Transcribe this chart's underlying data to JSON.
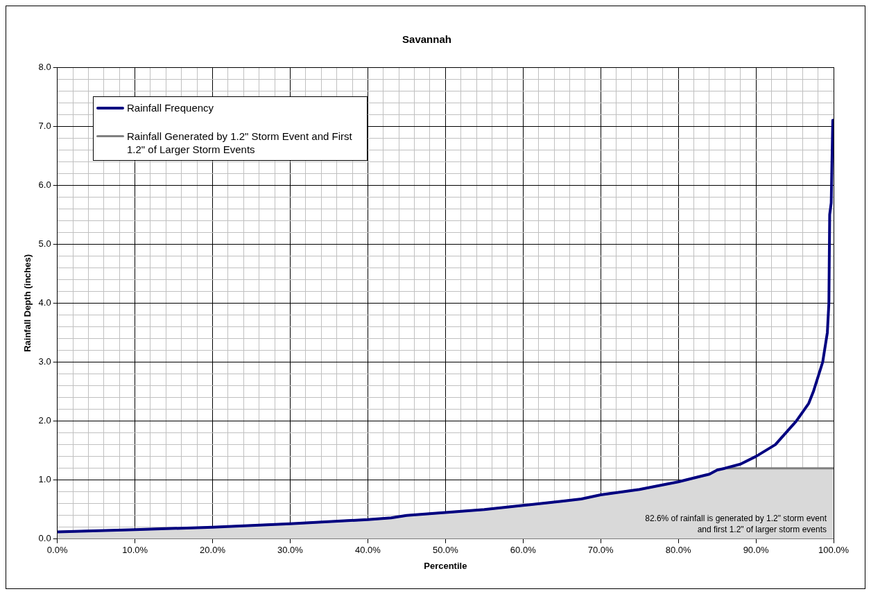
{
  "chart_data": {
    "type": "line",
    "title": "Savannah",
    "xlabel": "Percentile",
    "ylabel": "Rainfall Depth (inches)",
    "xlim": [
      0,
      100
    ],
    "ylim": [
      0,
      8
    ],
    "xticks": [
      {
        "value": 0,
        "label": "0.0%"
      },
      {
        "value": 2,
        "label": null
      },
      {
        "value": 4,
        "label": null
      },
      {
        "value": 6,
        "label": null
      },
      {
        "value": 8,
        "label": null
      },
      {
        "value": 10,
        "label": "10.0%"
      },
      {
        "value": 12,
        "label": null
      },
      {
        "value": 14,
        "label": null
      },
      {
        "value": 16,
        "label": null
      },
      {
        "value": 18,
        "label": null
      },
      {
        "value": 20,
        "label": "20.0%"
      },
      {
        "value": 22,
        "label": null
      },
      {
        "value": 24,
        "label": null
      },
      {
        "value": 26,
        "label": null
      },
      {
        "value": 28,
        "label": null
      },
      {
        "value": 30,
        "label": "30.0%"
      },
      {
        "value": 32,
        "label": null
      },
      {
        "value": 34,
        "label": null
      },
      {
        "value": 36,
        "label": null
      },
      {
        "value": 38,
        "label": null
      },
      {
        "value": 40,
        "label": "40.0%"
      },
      {
        "value": 42,
        "label": null
      },
      {
        "value": 44,
        "label": null
      },
      {
        "value": 46,
        "label": null
      },
      {
        "value": 48,
        "label": null
      },
      {
        "value": 50,
        "label": "50.0%"
      },
      {
        "value": 52,
        "label": null
      },
      {
        "value": 54,
        "label": null
      },
      {
        "value": 56,
        "label": null
      },
      {
        "value": 58,
        "label": null
      },
      {
        "value": 60,
        "label": "60.0%"
      },
      {
        "value": 62,
        "label": null
      },
      {
        "value": 64,
        "label": null
      },
      {
        "value": 66,
        "label": null
      },
      {
        "value": 68,
        "label": null
      },
      {
        "value": 70,
        "label": "70.0%"
      },
      {
        "value": 72,
        "label": null
      },
      {
        "value": 74,
        "label": null
      },
      {
        "value": 76,
        "label": null
      },
      {
        "value": 78,
        "label": null
      },
      {
        "value": 80,
        "label": "80.0%"
      },
      {
        "value": 82,
        "label": null
      },
      {
        "value": 84,
        "label": null
      },
      {
        "value": 86,
        "label": null
      },
      {
        "value": 88,
        "label": null
      },
      {
        "value": 90,
        "label": "90.0%"
      },
      {
        "value": 92,
        "label": null
      },
      {
        "value": 94,
        "label": null
      },
      {
        "value": 96,
        "label": null
      },
      {
        "value": 98,
        "label": null
      },
      {
        "value": 100,
        "label": "100.0%"
      }
    ],
    "yticks": [
      {
        "value": 0,
        "label": "0.0"
      },
      {
        "value": 0.2,
        "label": null
      },
      {
        "value": 0.4,
        "label": null
      },
      {
        "value": 0.6,
        "label": null
      },
      {
        "value": 0.8,
        "label": null
      },
      {
        "value": 1,
        "label": "1.0"
      },
      {
        "value": 1.2,
        "label": null
      },
      {
        "value": 1.4,
        "label": null
      },
      {
        "value": 1.6,
        "label": null
      },
      {
        "value": 1.8,
        "label": null
      },
      {
        "value": 2,
        "label": "2.0"
      },
      {
        "value": 2.2,
        "label": null
      },
      {
        "value": 2.4,
        "label": null
      },
      {
        "value": 2.6,
        "label": null
      },
      {
        "value": 2.8,
        "label": null
      },
      {
        "value": 3,
        "label": "3.0"
      },
      {
        "value": 3.2,
        "label": null
      },
      {
        "value": 3.4,
        "label": null
      },
      {
        "value": 3.6,
        "label": null
      },
      {
        "value": 3.8,
        "label": null
      },
      {
        "value": 4,
        "label": "4.0"
      },
      {
        "value": 4.2,
        "label": null
      },
      {
        "value": 4.4,
        "label": null
      },
      {
        "value": 4.6,
        "label": null
      },
      {
        "value": 4.8,
        "label": null
      },
      {
        "value": 5,
        "label": "5.0"
      },
      {
        "value": 5.2,
        "label": null
      },
      {
        "value": 5.4,
        "label": null
      },
      {
        "value": 5.6,
        "label": null
      },
      {
        "value": 5.8,
        "label": null
      },
      {
        "value": 6,
        "label": "6.0"
      },
      {
        "value": 6.2,
        "label": null
      },
      {
        "value": 6.4,
        "label": null
      },
      {
        "value": 6.6,
        "label": null
      },
      {
        "value": 6.8,
        "label": null
      },
      {
        "value": 7,
        "label": "7.0"
      },
      {
        "value": 7.2,
        "label": null
      },
      {
        "value": 7.4,
        "label": null
      },
      {
        "value": 7.6,
        "label": null
      },
      {
        "value": 7.8,
        "label": null
      },
      {
        "value": 8,
        "label": "8.0"
      }
    ],
    "grid": true,
    "legend": "top left",
    "marker": "none",
    "line_style": "solid",
    "annotations": [
      "82.6% of rainfall is generated by 1.2\" storm event and first 1.2\" of larger storm events"
    ],
    "series": [
      {
        "name": "Rainfall Frequency",
        "color": "#000080",
        "x": [
          0,
          10,
          20,
          30,
          40,
          43,
          45,
          50,
          55,
          60,
          65,
          67.5,
          70,
          75,
          80,
          84,
          85,
          86,
          88,
          90,
          92.5,
          95.2,
          96.8,
          97.4,
          98.6,
          99.2,
          99.4,
          99.5,
          99.7,
          99.9,
          100
        ],
        "values": [
          0.12,
          0.16,
          0.2,
          0.26,
          0.33,
          0.36,
          0.4,
          0.45,
          0.5,
          0.57,
          0.64,
          0.68,
          0.75,
          0.84,
          0.97,
          1.1,
          1.17,
          1.2,
          1.27,
          1.4,
          1.6,
          2.0,
          2.3,
          2.5,
          3.0,
          3.5,
          4.0,
          5.5,
          5.7,
          7.1,
          7.1
        ]
      },
      {
        "name": "Rainfall Generated by 1.2\" Storm Event and First 1.2\" of Larger Storm Events",
        "color": "#808080",
        "type": "area",
        "x": [
          0,
          10,
          20,
          30,
          40,
          43,
          45,
          50,
          55,
          60,
          65,
          67.5,
          70,
          75,
          80,
          84,
          85,
          86,
          100
        ],
        "values": [
          0.12,
          0.16,
          0.2,
          0.26,
          0.33,
          0.36,
          0.4,
          0.45,
          0.5,
          0.57,
          0.64,
          0.68,
          0.75,
          0.84,
          0.97,
          1.1,
          1.17,
          1.2,
          1.2
        ]
      }
    ]
  }
}
